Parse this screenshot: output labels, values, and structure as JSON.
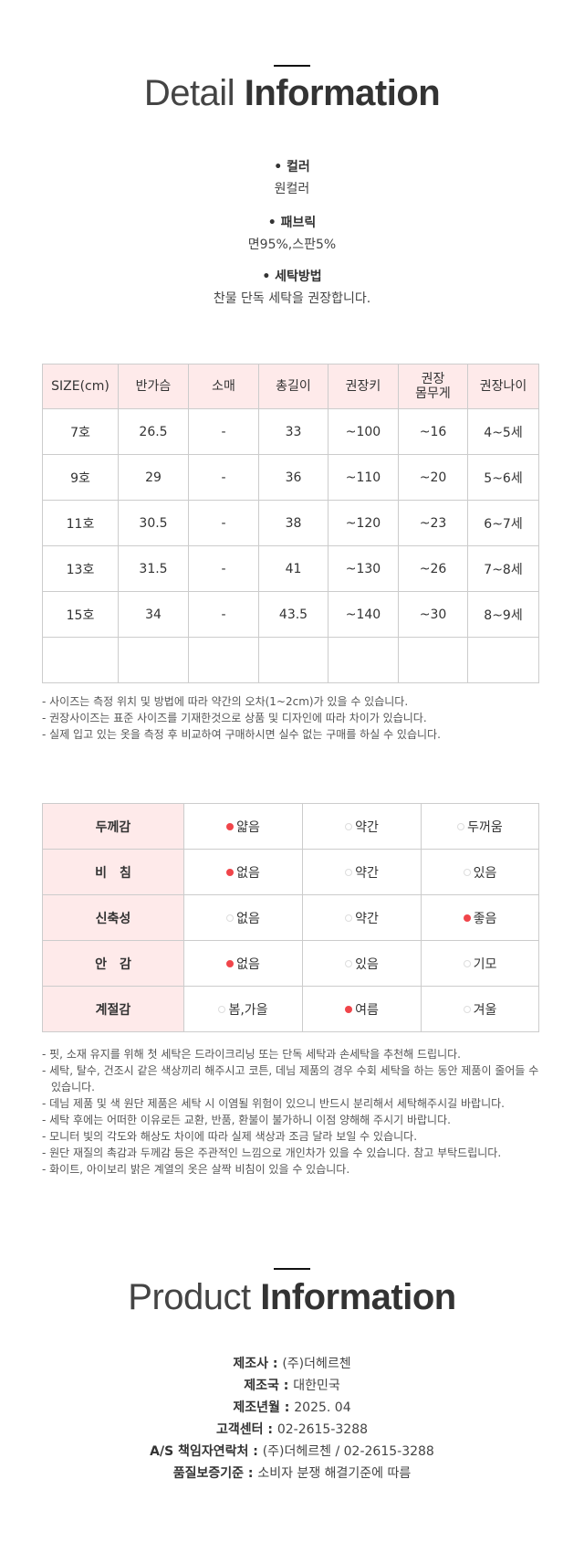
{
  "detail": {
    "title_light": "Detail",
    "title_bold": "Information",
    "specs": [
      {
        "label": "• 컬러",
        "value": "원컬러"
      },
      {
        "label": "• 패브릭",
        "value": "면95%,스판5%"
      },
      {
        "label": "• 세탁방법",
        "value": "찬물 단독 세탁을 권장합니다."
      }
    ]
  },
  "size_table": {
    "headers": [
      "SIZE(cm)",
      "반가슴",
      "소매",
      "총길이",
      "권장키",
      "권장\n몸무게",
      "권장나이"
    ],
    "rows": [
      [
        "7호",
        "26.5",
        "-",
        "33",
        "~100",
        "~16",
        "4~5세"
      ],
      [
        "9호",
        "29",
        "-",
        "36",
        "~110",
        "~20",
        "5~6세"
      ],
      [
        "11호",
        "30.5",
        "-",
        "38",
        "~120",
        "~23",
        "6~7세"
      ],
      [
        "13호",
        "31.5",
        "-",
        "41",
        "~130",
        "~26",
        "7~8세"
      ],
      [
        "15호",
        "34",
        "-",
        "43.5",
        "~140",
        "~30",
        "8~9세"
      ],
      [
        "",
        "",
        "",
        "",
        "",
        "",
        ""
      ]
    ]
  },
  "size_notes": [
    "- 사이즈는 측정 위치 및 방법에 따라 약간의 오차(1~2cm)가 있을 수 있습니다.",
    "- 권장사이즈는 표준 사이즈를 기재한것으로 상품 및 디자인에 따라 차이가 있습니다.",
    "- 실제 입고 있는 옷을 측정 후 비교하여 구매하시면 실수 없는 구매를 하실 수 있습니다."
  ],
  "fabric_table": {
    "rows": [
      {
        "label": "두께감",
        "options": [
          "얇음",
          "약간",
          "두꺼움"
        ],
        "selected": 0
      },
      {
        "label": "비　침",
        "options": [
          "없음",
          "약간",
          "있음"
        ],
        "selected": 0
      },
      {
        "label": "신축성",
        "options": [
          "없음",
          "약간",
          "좋음"
        ],
        "selected": 2
      },
      {
        "label": "안　감",
        "options": [
          "없음",
          "있음",
          "기모"
        ],
        "selected": 0
      },
      {
        "label": "계절감",
        "options": [
          "봄,가을",
          "여름",
          "겨울"
        ],
        "selected": 1
      }
    ],
    "selected_color": "#f0454a"
  },
  "care_notes": [
    "- 핏, 소재 유지를 위해 첫 세탁은 드라이크리닝 또는 단독 세탁과 손세탁을 추천해 드립니다.",
    "- 세탁, 탈수, 건조시 같은 색상끼리 해주시고 코튼, 데님 제품의 경우 수회 세탁을 하는 동안 제품이 줄어들 수 있습니다.",
    "- 데님 제품 및 색 원단 제품은 세탁 시 이염될 위험이 있으니 반드시 분리해서 세탁해주시길 바랍니다.",
    "- 세탁 후에는 어떠한 이유로든 교환, 반품, 환불이 불가하니 이점 양해해 주시기 바랍니다.",
    "- 모니터 빛의 각도와 해상도 차이에 따라 실제 색상과 조금 달라 보일 수 있습니다.",
    "- 원단 재질의 촉감과 두께감 등은 주관적인 느낌으로 개인차가 있을 수 있습니다. 참고 부탁드립니다.",
    "- 화이트, 아이보리 밝은 계열의 옷은 살짝 비침이 있을 수 있습니다."
  ],
  "product": {
    "title_light": "Product",
    "title_bold": "Information",
    "items": [
      {
        "label": "제조사 : ",
        "value": "(주)더헤르첸"
      },
      {
        "label": "제조국 : ",
        "value": "대한민국"
      },
      {
        "label": "제조년월 : ",
        "value": "2025. 04"
      },
      {
        "label": "고객센터 : ",
        "value": "02-2615-3288"
      },
      {
        "label": "A/S 책임자연락처 : ",
        "value": "(주)더헤르첸 / 02-2615-3288"
      },
      {
        "label": "품질보증기준 : ",
        "value": "소비자 분쟁 해결기준에 따름"
      }
    ]
  }
}
